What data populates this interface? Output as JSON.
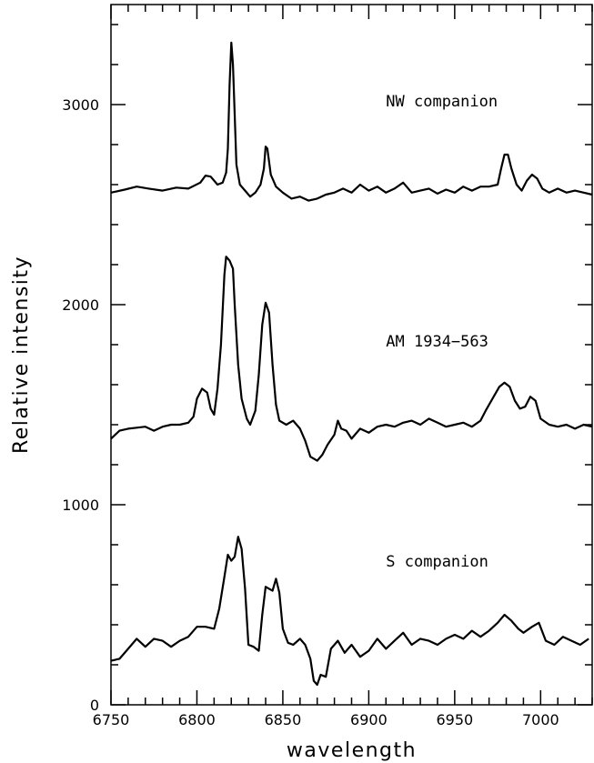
{
  "chart_data": {
    "type": "line",
    "title": "",
    "xlabel": "wavelength",
    "ylabel": "Relative intensity",
    "xlim": [
      6750,
      7030
    ],
    "ylim": [
      0,
      3500
    ],
    "x_ticks": [
      6750,
      6800,
      6850,
      6900,
      6950,
      7000
    ],
    "x_tick_labels": [
      "6750",
      "6800",
      "6850",
      "6900",
      "6950",
      "7000"
    ],
    "y_ticks": [
      0,
      1000,
      2000,
      3000
    ],
    "y_tick_labels": [
      "0",
      "1000",
      "2000",
      "3000"
    ],
    "grid": false,
    "legend": "none",
    "series": [
      {
        "name": "NW companion",
        "label_pos": [
          6910,
          2990
        ],
        "points": [
          [
            6750,
            2560
          ],
          [
            6758,
            2575
          ],
          [
            6765,
            2590
          ],
          [
            6772,
            2580
          ],
          [
            6780,
            2570
          ],
          [
            6788,
            2585
          ],
          [
            6795,
            2580
          ],
          [
            6802,
            2610
          ],
          [
            6805,
            2645
          ],
          [
            6808,
            2640
          ],
          [
            6812,
            2600
          ],
          [
            6815,
            2610
          ],
          [
            6817,
            2660
          ],
          [
            6818,
            2780
          ],
          [
            6819,
            3100
          ],
          [
            6820,
            3310
          ],
          [
            6821,
            3200
          ],
          [
            6822,
            2950
          ],
          [
            6823,
            2700
          ],
          [
            6825,
            2600
          ],
          [
            6828,
            2570
          ],
          [
            6831,
            2540
          ],
          [
            6834,
            2560
          ],
          [
            6837,
            2600
          ],
          [
            6839,
            2680
          ],
          [
            6840,
            2790
          ],
          [
            6841,
            2780
          ],
          [
            6843,
            2650
          ],
          [
            6846,
            2590
          ],
          [
            6850,
            2560
          ],
          [
            6855,
            2530
          ],
          [
            6860,
            2540
          ],
          [
            6865,
            2520
          ],
          [
            6870,
            2530
          ],
          [
            6875,
            2550
          ],
          [
            6880,
            2560
          ],
          [
            6885,
            2580
          ],
          [
            6890,
            2560
          ],
          [
            6895,
            2600
          ],
          [
            6900,
            2570
          ],
          [
            6905,
            2590
          ],
          [
            6910,
            2560
          ],
          [
            6915,
            2580
          ],
          [
            6920,
            2610
          ],
          [
            6925,
            2560
          ],
          [
            6930,
            2570
          ],
          [
            6935,
            2580
          ],
          [
            6940,
            2555
          ],
          [
            6945,
            2575
          ],
          [
            6950,
            2560
          ],
          [
            6955,
            2590
          ],
          [
            6960,
            2570
          ],
          [
            6965,
            2590
          ],
          [
            6970,
            2590
          ],
          [
            6975,
            2600
          ],
          [
            6977,
            2680
          ],
          [
            6979,
            2750
          ],
          [
            6981,
            2750
          ],
          [
            6983,
            2680
          ],
          [
            6986,
            2600
          ],
          [
            6989,
            2570
          ],
          [
            6992,
            2620
          ],
          [
            6995,
            2650
          ],
          [
            6998,
            2630
          ],
          [
            7001,
            2580
          ],
          [
            7005,
            2560
          ],
          [
            7010,
            2580
          ],
          [
            7015,
            2560
          ],
          [
            7020,
            2570
          ],
          [
            7025,
            2560
          ],
          [
            7030,
            2550
          ]
        ]
      },
      {
        "name": "AM 1934−563",
        "label_pos": [
          6910,
          1790
        ],
        "points": [
          [
            6750,
            1330
          ],
          [
            6755,
            1370
          ],
          [
            6760,
            1380
          ],
          [
            6765,
            1385
          ],
          [
            6770,
            1390
          ],
          [
            6775,
            1370
          ],
          [
            6780,
            1390
          ],
          [
            6785,
            1400
          ],
          [
            6790,
            1400
          ],
          [
            6795,
            1410
          ],
          [
            6798,
            1440
          ],
          [
            6800,
            1530
          ],
          [
            6803,
            1580
          ],
          [
            6806,
            1560
          ],
          [
            6808,
            1480
          ],
          [
            6810,
            1450
          ],
          [
            6812,
            1580
          ],
          [
            6814,
            1800
          ],
          [
            6816,
            2150
          ],
          [
            6817,
            2240
          ],
          [
            6819,
            2220
          ],
          [
            6821,
            2180
          ],
          [
            6822,
            2000
          ],
          [
            6824,
            1700
          ],
          [
            6826,
            1530
          ],
          [
            6829,
            1430
          ],
          [
            6831,
            1400
          ],
          [
            6834,
            1470
          ],
          [
            6836,
            1650
          ],
          [
            6838,
            1900
          ],
          [
            6840,
            2010
          ],
          [
            6842,
            1960
          ],
          [
            6844,
            1700
          ],
          [
            6846,
            1500
          ],
          [
            6848,
            1420
          ],
          [
            6852,
            1400
          ],
          [
            6856,
            1420
          ],
          [
            6860,
            1380
          ],
          [
            6863,
            1320
          ],
          [
            6866,
            1240
          ],
          [
            6870,
            1220
          ],
          [
            6873,
            1250
          ],
          [
            6876,
            1300
          ],
          [
            6880,
            1350
          ],
          [
            6882,
            1420
          ],
          [
            6884,
            1380
          ],
          [
            6887,
            1370
          ],
          [
            6890,
            1330
          ],
          [
            6895,
            1380
          ],
          [
            6900,
            1360
          ],
          [
            6905,
            1390
          ],
          [
            6910,
            1400
          ],
          [
            6915,
            1390
          ],
          [
            6920,
            1410
          ],
          [
            6925,
            1420
          ],
          [
            6930,
            1400
          ],
          [
            6935,
            1430
          ],
          [
            6940,
            1410
          ],
          [
            6945,
            1390
          ],
          [
            6950,
            1400
          ],
          [
            6955,
            1410
          ],
          [
            6960,
            1390
          ],
          [
            6965,
            1420
          ],
          [
            6968,
            1470
          ],
          [
            6972,
            1530
          ],
          [
            6976,
            1590
          ],
          [
            6979,
            1610
          ],
          [
            6982,
            1590
          ],
          [
            6985,
            1520
          ],
          [
            6988,
            1480
          ],
          [
            6991,
            1490
          ],
          [
            6994,
            1540
          ],
          [
            6997,
            1520
          ],
          [
            7000,
            1430
          ],
          [
            7005,
            1400
          ],
          [
            7010,
            1390
          ],
          [
            7015,
            1400
          ],
          [
            7020,
            1380
          ],
          [
            7025,
            1400
          ],
          [
            7030,
            1390
          ]
        ]
      },
      {
        "name": "S companion",
        "label_pos": [
          6910,
          690
        ],
        "points": [
          [
            6750,
            220
          ],
          [
            6755,
            230
          ],
          [
            6760,
            280
          ],
          [
            6765,
            330
          ],
          [
            6770,
            290
          ],
          [
            6775,
            330
          ],
          [
            6780,
            320
          ],
          [
            6785,
            290
          ],
          [
            6790,
            320
          ],
          [
            6795,
            340
          ],
          [
            6800,
            390
          ],
          [
            6805,
            390
          ],
          [
            6810,
            380
          ],
          [
            6813,
            480
          ],
          [
            6816,
            640
          ],
          [
            6818,
            750
          ],
          [
            6820,
            720
          ],
          [
            6822,
            740
          ],
          [
            6824,
            840
          ],
          [
            6826,
            780
          ],
          [
            6828,
            580
          ],
          [
            6830,
            300
          ],
          [
            6833,
            290
          ],
          [
            6836,
            270
          ],
          [
            6838,
            450
          ],
          [
            6840,
            590
          ],
          [
            6842,
            580
          ],
          [
            6844,
            570
          ],
          [
            6846,
            630
          ],
          [
            6848,
            560
          ],
          [
            6850,
            380
          ],
          [
            6853,
            310
          ],
          [
            6856,
            300
          ],
          [
            6860,
            330
          ],
          [
            6863,
            300
          ],
          [
            6866,
            230
          ],
          [
            6868,
            120
          ],
          [
            6870,
            100
          ],
          [
            6872,
            150
          ],
          [
            6875,
            140
          ],
          [
            6878,
            280
          ],
          [
            6882,
            320
          ],
          [
            6886,
            260
          ],
          [
            6890,
            300
          ],
          [
            6895,
            240
          ],
          [
            6900,
            270
          ],
          [
            6905,
            330
          ],
          [
            6910,
            280
          ],
          [
            6915,
            320
          ],
          [
            6920,
            360
          ],
          [
            6925,
            300
          ],
          [
            6930,
            330
          ],
          [
            6935,
            320
          ],
          [
            6940,
            300
          ],
          [
            6945,
            330
          ],
          [
            6950,
            350
          ],
          [
            6955,
            330
          ],
          [
            6960,
            370
          ],
          [
            6965,
            340
          ],
          [
            6970,
            370
          ],
          [
            6975,
            410
          ],
          [
            6979,
            450
          ],
          [
            6983,
            420
          ],
          [
            6987,
            380
          ],
          [
            6990,
            360
          ],
          [
            6995,
            390
          ],
          [
            6999,
            410
          ],
          [
            7003,
            320
          ],
          [
            7008,
            300
          ],
          [
            7013,
            340
          ],
          [
            7018,
            320
          ],
          [
            7023,
            300
          ],
          [
            7028,
            330
          ]
        ]
      }
    ]
  }
}
